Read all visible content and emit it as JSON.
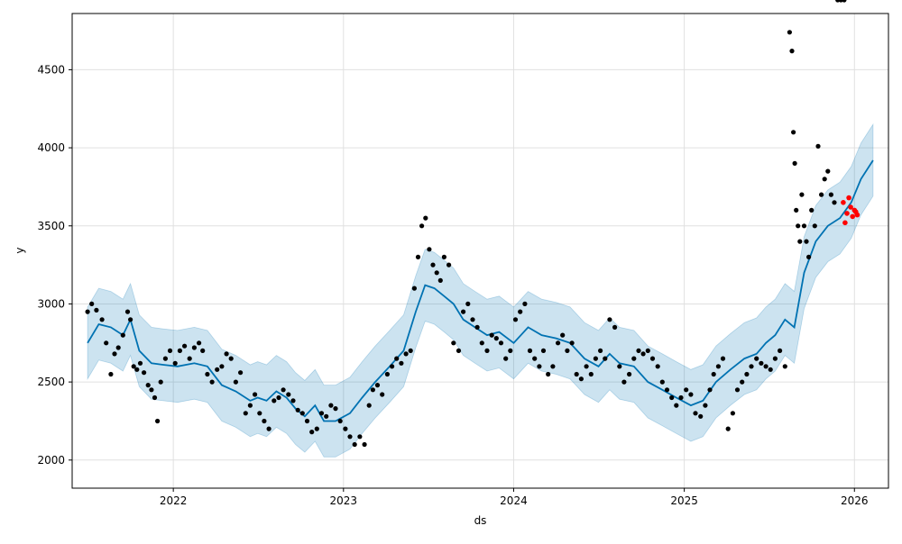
{
  "chart_data": {
    "type": "line",
    "xlabel": "ds",
    "ylabel": "y",
    "xlim": [
      "2021-05-29",
      "2026-03-15"
    ],
    "ylim": [
      1820,
      4860
    ],
    "x_ticks": [
      "2022",
      "2023",
      "2024",
      "2025",
      "2026"
    ],
    "x_tick_dates": [
      "2022-01-01",
      "2023-01-01",
      "2024-01-01",
      "2025-01-01",
      "2026-01-01"
    ],
    "y_ticks": [
      2000,
      2500,
      3000,
      3500,
      4000,
      4500
    ],
    "grid": true,
    "colors": {
      "forecast_line": "#0072B2",
      "interval_fill": "#0072B2",
      "observed": "#000000",
      "highlight": "#ff0000",
      "grid": "#e0e0e0",
      "axes": "#000000"
    },
    "forecast": {
      "ds": [
        "2021-07-01",
        "2021-07-25",
        "2021-08-20",
        "2021-09-15",
        "2021-10-01",
        "2021-10-20",
        "2021-11-15",
        "2021-12-10",
        "2022-01-10",
        "2022-02-15",
        "2022-03-15",
        "2022-04-15",
        "2022-05-15",
        "2022-06-15",
        "2022-07-01",
        "2022-07-20",
        "2022-08-10",
        "2022-09-01",
        "2022-09-20",
        "2022-10-10",
        "2022-11-01",
        "2022-11-20",
        "2022-12-15",
        "2023-01-15",
        "2023-02-10",
        "2023-03-10",
        "2023-04-10",
        "2023-05-10",
        "2023-06-05",
        "2023-06-25",
        "2023-07-15",
        "2023-08-05",
        "2023-08-25",
        "2023-09-15",
        "2023-10-10",
        "2023-11-05",
        "2023-12-01",
        "2024-01-01",
        "2024-02-01",
        "2024-03-01",
        "2024-04-01",
        "2024-05-01",
        "2024-06-01",
        "2024-07-01",
        "2024-07-25",
        "2024-08-15",
        "2024-09-15",
        "2024-10-15",
        "2024-11-15",
        "2024-12-15",
        "2025-01-15",
        "2025-02-10",
        "2025-03-10",
        "2025-04-10",
        "2025-05-10",
        "2025-06-05",
        "2025-06-25",
        "2025-07-15",
        "2025-08-05",
        "2025-08-25",
        "2025-09-15",
        "2025-10-10",
        "2025-11-05",
        "2025-12-01",
        "2025-12-25",
        "2026-01-15",
        "2026-02-10"
      ],
      "yhat": [
        2750,
        2870,
        2850,
        2800,
        2900,
        2700,
        2620,
        2610,
        2600,
        2620,
        2600,
        2480,
        2440,
        2380,
        2400,
        2380,
        2440,
        2400,
        2330,
        2280,
        2350,
        2250,
        2250,
        2300,
        2400,
        2500,
        2600,
        2700,
        2950,
        3120,
        3100,
        3050,
        3000,
        2900,
        2850,
        2800,
        2820,
        2750,
        2850,
        2800,
        2780,
        2750,
        2650,
        2600,
        2680,
        2620,
        2600,
        2500,
        2450,
        2400,
        2350,
        2380,
        2500,
        2580,
        2650,
        2680,
        2750,
        2800,
        2900,
        2850,
        3200,
        3400,
        3500,
        3550,
        3650,
        3800,
        3920
      ],
      "yhat_lower": [
        2520,
        2640,
        2620,
        2570,
        2670,
        2470,
        2390,
        2380,
        2370,
        2390,
        2370,
        2250,
        2210,
        2150,
        2170,
        2150,
        2210,
        2170,
        2100,
        2050,
        2120,
        2020,
        2020,
        2070,
        2170,
        2270,
        2370,
        2470,
        2720,
        2890,
        2870,
        2820,
        2770,
        2670,
        2620,
        2570,
        2590,
        2520,
        2620,
        2570,
        2550,
        2520,
        2420,
        2370,
        2450,
        2390,
        2370,
        2270,
        2220,
        2170,
        2120,
        2150,
        2270,
        2350,
        2420,
        2450,
        2520,
        2570,
        2670,
        2620,
        2970,
        3170,
        3270,
        3320,
        3420,
        3570,
        3690
      ],
      "yhat_upper": [
        2980,
        3100,
        3080,
        3030,
        3130,
        2930,
        2850,
        2840,
        2830,
        2850,
        2830,
        2710,
        2670,
        2610,
        2630,
        2610,
        2670,
        2630,
        2560,
        2510,
        2580,
        2480,
        2480,
        2530,
        2630,
        2730,
        2830,
        2930,
        3180,
        3350,
        3330,
        3280,
        3230,
        3130,
        3080,
        3030,
        3050,
        2980,
        3080,
        3030,
        3010,
        2980,
        2880,
        2830,
        2910,
        2850,
        2830,
        2730,
        2680,
        2630,
        2580,
        2610,
        2730,
        2810,
        2880,
        2910,
        2980,
        3030,
        3130,
        3080,
        3430,
        3630,
        3730,
        3780,
        3880,
        4030,
        4150
      ]
    },
    "observed": {
      "ds": [
        "2021-07-01",
        "2021-07-10",
        "2021-07-20",
        "2021-08-01",
        "2021-08-10",
        "2021-08-20",
        "2021-08-28",
        "2021-09-05",
        "2021-09-15",
        "2021-09-25",
        "2021-10-01",
        "2021-10-08",
        "2021-10-15",
        "2021-10-22",
        "2021-10-30",
        "2021-11-08",
        "2021-11-15",
        "2021-11-22",
        "2021-11-28",
        "2021-12-05",
        "2021-12-15",
        "2021-12-25",
        "2022-01-05",
        "2022-01-15",
        "2022-01-25",
        "2022-02-05",
        "2022-02-15",
        "2022-02-25",
        "2022-03-05",
        "2022-03-15",
        "2022-03-25",
        "2022-04-05",
        "2022-04-15",
        "2022-04-25",
        "2022-05-05",
        "2022-05-15",
        "2022-05-25",
        "2022-06-05",
        "2022-06-15",
        "2022-06-25",
        "2022-07-05",
        "2022-07-15",
        "2022-07-25",
        "2022-08-05",
        "2022-08-15",
        "2022-08-25",
        "2022-09-05",
        "2022-09-15",
        "2022-09-25",
        "2022-10-05",
        "2022-10-15",
        "2022-10-25",
        "2022-11-05",
        "2022-11-15",
        "2022-11-25",
        "2022-12-05",
        "2022-12-15",
        "2022-12-25",
        "2023-01-05",
        "2023-01-15",
        "2023-01-25",
        "2023-02-05",
        "2023-02-15",
        "2023-02-25",
        "2023-03-05",
        "2023-03-15",
        "2023-03-25",
        "2023-04-05",
        "2023-04-15",
        "2023-04-25",
        "2023-05-05",
        "2023-05-15",
        "2023-05-25",
        "2023-06-02",
        "2023-06-10",
        "2023-06-18",
        "2023-06-26",
        "2023-07-04",
        "2023-07-12",
        "2023-07-20",
        "2023-07-28",
        "2023-08-05",
        "2023-08-15",
        "2023-08-25",
        "2023-09-05",
        "2023-09-15",
        "2023-09-25",
        "2023-10-05",
        "2023-10-15",
        "2023-10-25",
        "2023-11-05",
        "2023-11-15",
        "2023-11-25",
        "2023-12-05",
        "2023-12-15",
        "2023-12-25",
        "2024-01-05",
        "2024-01-15",
        "2024-01-25",
        "2024-02-05",
        "2024-02-15",
        "2024-02-25",
        "2024-03-05",
        "2024-03-15",
        "2024-03-25",
        "2024-04-05",
        "2024-04-15",
        "2024-04-25",
        "2024-05-05",
        "2024-05-15",
        "2024-05-25",
        "2024-06-05",
        "2024-06-15",
        "2024-06-25",
        "2024-07-05",
        "2024-07-15",
        "2024-07-25",
        "2024-08-05",
        "2024-08-15",
        "2024-08-25",
        "2024-09-05",
        "2024-09-15",
        "2024-09-25",
        "2024-10-05",
        "2024-10-15",
        "2024-10-25",
        "2024-11-05",
        "2024-11-15",
        "2024-11-25",
        "2024-12-05",
        "2024-12-15",
        "2024-12-25",
        "2025-01-05",
        "2025-01-15",
        "2025-01-25",
        "2025-02-05",
        "2025-02-15",
        "2025-02-25",
        "2025-03-05",
        "2025-03-15",
        "2025-03-25",
        "2025-04-05",
        "2025-04-15",
        "2025-04-25",
        "2025-05-05",
        "2025-05-15",
        "2025-05-25",
        "2025-06-05",
        "2025-06-15",
        "2025-06-25",
        "2025-07-05",
        "2025-07-15",
        "2025-07-25",
        "2025-08-05",
        "2025-08-15",
        "2025-08-20",
        "2025-08-23",
        "2025-08-26",
        "2025-08-29",
        "2025-09-02",
        "2025-09-06",
        "2025-09-10",
        "2025-09-15",
        "2025-09-20",
        "2025-09-25",
        "2025-10-01",
        "2025-10-08",
        "2025-10-15",
        "2025-10-22",
        "2025-10-29",
        "2025-11-05",
        "2025-11-12",
        "2025-11-19",
        "2025-11-26",
        "2025-12-03",
        "2025-12-10"
      ],
      "y": [
        2950,
        3000,
        2960,
        2900,
        2750,
        2550,
        2680,
        2720,
        2800,
        2950,
        2900,
        2600,
        2580,
        2620,
        2560,
        2480,
        2450,
        2400,
        2250,
        2500,
        2650,
        2700,
        2620,
        2700,
        2730,
        2650,
        2720,
        2750,
        2700,
        2550,
        2500,
        2580,
        2600,
        2680,
        2650,
        2500,
        2560,
        2300,
        2350,
        2420,
        2300,
        2250,
        2200,
        2380,
        2400,
        2450,
        2420,
        2380,
        2320,
        2300,
        2250,
        2180,
        2200,
        2300,
        2280,
        2350,
        2330,
        2250,
        2200,
        2150,
        2100,
        2150,
        2100,
        2350,
        2450,
        2480,
        2420,
        2550,
        2600,
        2650,
        2620,
        2680,
        2700,
        3100,
        3300,
        3500,
        3550,
        3350,
        3250,
        3200,
        3150,
        3300,
        3250,
        2750,
        2700,
        2950,
        3000,
        2900,
        2850,
        2750,
        2700,
        2800,
        2780,
        2750,
        2650,
        2700,
        2900,
        2950,
        3000,
        2700,
        2650,
        2600,
        2700,
        2550,
        2600,
        2750,
        2800,
        2700,
        2750,
        2550,
        2520,
        2600,
        2550,
        2650,
        2700,
        2650,
        2900,
        2850,
        2600,
        2500,
        2550,
        2650,
        2700,
        2680,
        2700,
        2650,
        2600,
        2500,
        2450,
        2400,
        2350,
        2400,
        2450,
        2420,
        2300,
        2280,
        2350,
        2450,
        2550,
        2600,
        2650,
        2200,
        2300,
        2450,
        2500,
        2550,
        2600,
        2650,
        2620,
        2600,
        2580,
        2650,
        2700,
        2600,
        4740,
        4620,
        4100,
        3900,
        3600,
        3500,
        3400,
        3700,
        3500,
        3400,
        3300,
        3600,
        3500,
        4010,
        3700,
        3800,
        3850,
        3700,
        3650
      ],
      "highlight_ds": [
        "2025-12-08",
        "2025-12-12",
        "2025-12-16",
        "2025-12-20",
        "2025-12-24",
        "2025-12-28",
        "2026-01-01",
        "2026-01-04",
        "2026-01-07"
      ],
      "highlight_y": [
        3650,
        3520,
        3580,
        3680,
        3620,
        3560,
        3600,
        3590,
        3570
      ]
    }
  }
}
